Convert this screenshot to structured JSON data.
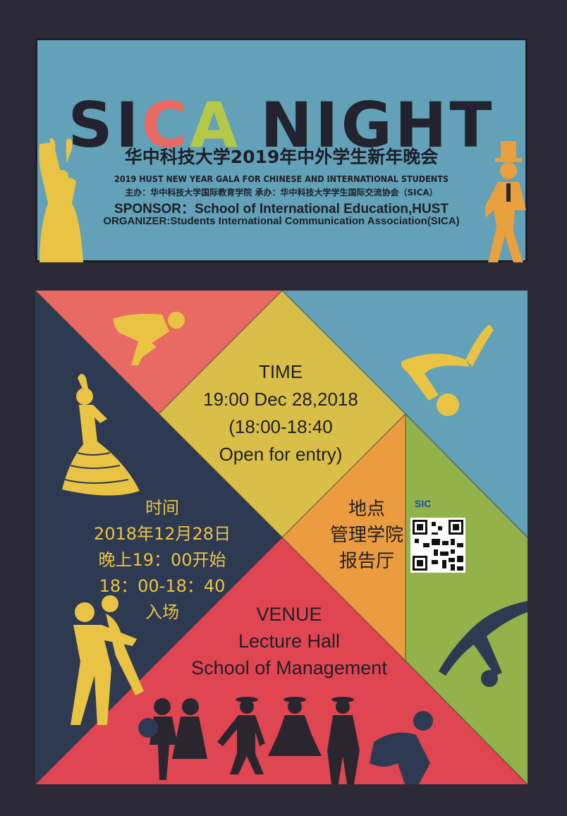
{
  "header": {
    "title_parts": [
      "S",
      "I",
      "C",
      "A",
      "NIGHT"
    ],
    "subtitle_cn": "华中科技大学2019年中外学生新年晚会",
    "subtitle_en": "2019 HUST NEW YEAR GALA FOR CHINESE AND INTERNATIONAL STUDENTS",
    "host_line": "主办：华中科技大学国际教育学院  承办：华中科技大学学生国际交流协会（SICA）",
    "sponsor_line": "SPONSOR：School of International Education,HUST",
    "organizer_line": "ORGANIZER:Students International Communication Association(SICA)"
  },
  "time_en": {
    "label": "TIME",
    "datetime": "19:00 Dec 28,2018",
    "entry_range": "(18:00-18:40",
    "entry_note": "Open for entry)"
  },
  "time_cn": {
    "label": "时间",
    "date": "2018年12月28日",
    "start": "晚上19：00开始",
    "entry_range": "18：00-18：40",
    "entry_note": "入场"
  },
  "venue_cn": {
    "label": "地点",
    "line1": "管理学院",
    "line2": "报告厅"
  },
  "venue_en": {
    "label": "VENUE",
    "line1": "Lecture Hall",
    "line2": "School of Management"
  },
  "qr": {
    "logo_text": "SIC"
  },
  "colors": {
    "background": "#2c2a36",
    "teal": "#62a1b7",
    "salmon": "#e86a63",
    "yellow": "#d9bf48",
    "navy": "#2e3a52",
    "orange": "#ea9c3e",
    "green": "#93b24a",
    "red": "#e04652",
    "silhouette_yellow": "#e9c444",
    "silhouette_dark": "#2a2630"
  }
}
